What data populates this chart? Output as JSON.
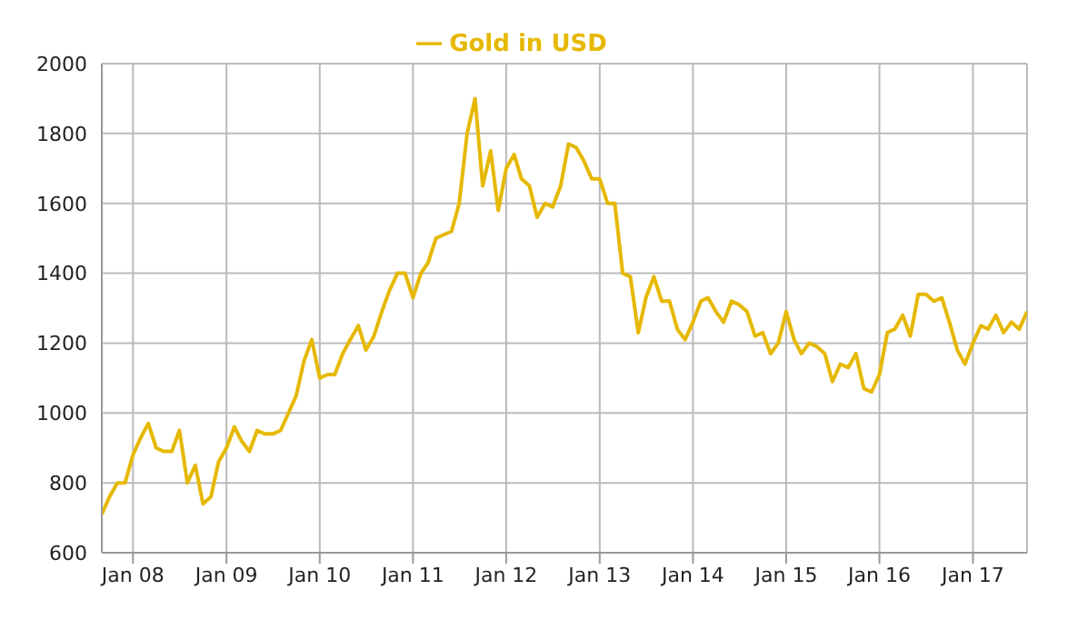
{
  "chart_data": {
    "type": "line",
    "x": [
      "2007-09",
      "2007-10",
      "2007-11",
      "2007-12",
      "2008-01",
      "2008-02",
      "2008-03",
      "2008-04",
      "2008-05",
      "2008-06",
      "2008-07",
      "2008-08",
      "2008-09",
      "2008-10",
      "2008-11",
      "2008-12",
      "2009-01",
      "2009-02",
      "2009-03",
      "2009-04",
      "2009-05",
      "2009-06",
      "2009-07",
      "2009-08",
      "2009-09",
      "2009-10",
      "2009-11",
      "2009-12",
      "2010-01",
      "2010-02",
      "2010-03",
      "2010-04",
      "2010-05",
      "2010-06",
      "2010-07",
      "2010-08",
      "2010-09",
      "2010-10",
      "2010-11",
      "2010-12",
      "2011-01",
      "2011-02",
      "2011-03",
      "2011-04",
      "2011-05",
      "2011-06",
      "2011-07",
      "2011-08",
      "2011-09",
      "2011-10",
      "2011-11",
      "2011-12",
      "2012-01",
      "2012-02",
      "2012-03",
      "2012-04",
      "2012-05",
      "2012-06",
      "2012-07",
      "2012-08",
      "2012-09",
      "2012-10",
      "2012-11",
      "2012-12",
      "2013-01",
      "2013-02",
      "2013-03",
      "2013-04",
      "2013-05",
      "2013-06",
      "2013-07",
      "2013-08",
      "2013-09",
      "2013-10",
      "2013-11",
      "2013-12",
      "2014-01",
      "2014-02",
      "2014-03",
      "2014-04",
      "2014-05",
      "2014-06",
      "2014-07",
      "2014-08",
      "2014-09",
      "2014-10",
      "2014-11",
      "2014-12",
      "2015-01",
      "2015-02",
      "2015-03",
      "2015-04",
      "2015-05",
      "2015-06",
      "2015-07",
      "2015-08",
      "2015-09",
      "2015-10",
      "2015-11",
      "2015-12",
      "2016-01",
      "2016-02",
      "2016-03",
      "2016-04",
      "2016-05",
      "2016-06",
      "2016-07",
      "2016-08",
      "2016-09",
      "2016-10",
      "2016-11",
      "2016-12",
      "2017-01",
      "2017-02",
      "2017-03",
      "2017-04",
      "2017-05",
      "2017-06",
      "2017-07",
      "2017-08"
    ],
    "series": [
      {
        "name": "Gold in USD",
        "color": "#e6b800",
        "values": [
          710,
          760,
          800,
          800,
          880,
          930,
          970,
          900,
          890,
          890,
          950,
          800,
          850,
          740,
          760,
          860,
          900,
          960,
          920,
          890,
          950,
          940,
          940,
          950,
          1000,
          1050,
          1150,
          1210,
          1100,
          1110,
          1110,
          1170,
          1210,
          1250,
          1180,
          1220,
          1290,
          1350,
          1400,
          1400,
          1330,
          1400,
          1430,
          1500,
          1510,
          1520,
          1600,
          1800,
          1900,
          1650,
          1750,
          1580,
          1700,
          1740,
          1670,
          1650,
          1560,
          1600,
          1590,
          1650,
          1770,
          1760,
          1720,
          1670,
          1670,
          1600,
          1600,
          1400,
          1390,
          1230,
          1330,
          1390,
          1320,
          1320,
          1240,
          1210,
          1260,
          1320,
          1330,
          1290,
          1260,
          1320,
          1310,
          1290,
          1220,
          1230,
          1170,
          1200,
          1290,
          1210,
          1170,
          1200,
          1190,
          1170,
          1090,
          1140,
          1130,
          1170,
          1070,
          1060,
          1110,
          1230,
          1240,
          1280,
          1220,
          1340,
          1340,
          1320,
          1330,
          1260,
          1180,
          1140,
          1200,
          1250,
          1240,
          1280,
          1230,
          1260,
          1240,
          1290
        ]
      }
    ],
    "xlim": [
      "2007-09",
      "2017-08"
    ],
    "xticks": [
      {
        "value": "2008-01",
        "label": "Jan 08"
      },
      {
        "value": "2009-01",
        "label": "Jan 09"
      },
      {
        "value": "2010-01",
        "label": "Jan 10"
      },
      {
        "value": "2011-01",
        "label": "Jan 11"
      },
      {
        "value": "2012-01",
        "label": "Jan 12"
      },
      {
        "value": "2013-01",
        "label": "Jan 13"
      },
      {
        "value": "2014-01",
        "label": "Jan 14"
      },
      {
        "value": "2015-01",
        "label": "Jan 15"
      },
      {
        "value": "2016-01",
        "label": "Jan 16"
      },
      {
        "value": "2017-01",
        "label": "Jan 17"
      }
    ],
    "ylim": [
      600,
      2000
    ],
    "yticks": [
      600,
      800,
      1000,
      1200,
      1400,
      1600,
      1800,
      2000
    ],
    "grid": true,
    "legend": "top",
    "marker": "none",
    "line_style": "solid"
  }
}
